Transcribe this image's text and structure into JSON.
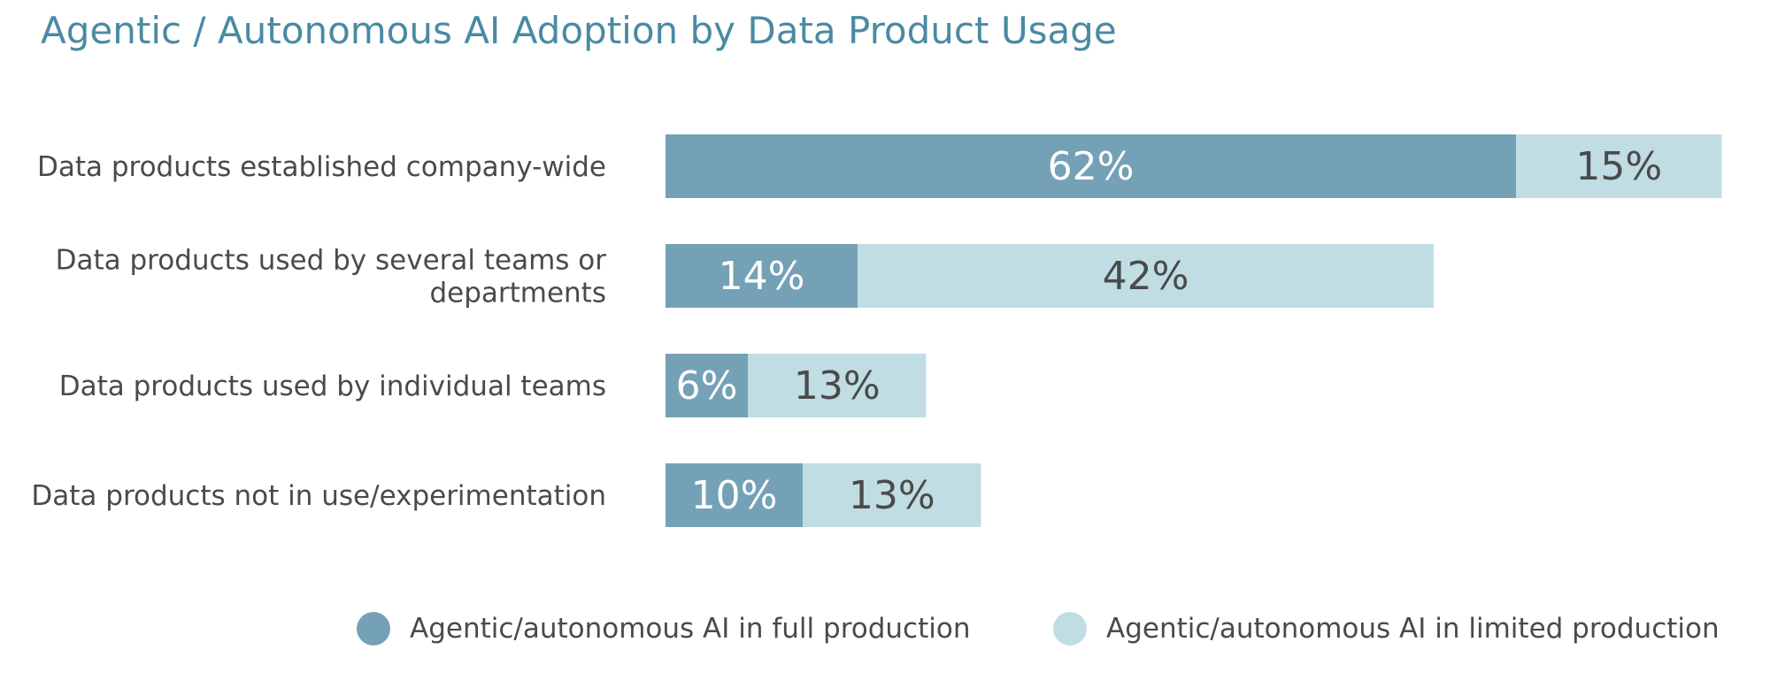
{
  "title": "Agentic / Autonomous AI Adoption by Data Product Usage",
  "colors": {
    "full_production": "#74a1b5",
    "limited_production": "#c0dde3",
    "title": "#4a8aa2",
    "label": "#4a4a4a"
  },
  "legend": {
    "full_label": "Agentic/autonomous AI in full production",
    "limited_label": "Agentic/autonomous AI in limited production"
  },
  "chart_data": {
    "type": "bar",
    "orientation": "horizontal",
    "stacked": true,
    "title": "Agentic / Autonomous AI Adoption by Data Product Usage",
    "categories": [
      [
        "Data products established company-wide"
      ],
      [
        "Data products used by several teams or",
        "departments"
      ],
      [
        "Data products used by individual teams"
      ],
      [
        "Data products not in use/experimentation"
      ]
    ],
    "series": [
      {
        "name": "Agentic/autonomous AI in full production",
        "color": "#74a1b5",
        "values": [
          62,
          14,
          6,
          10
        ],
        "labels": [
          "62%",
          "14%",
          "6%",
          "10%"
        ]
      },
      {
        "name": "Agentic/autonomous AI in limited production",
        "color": "#c0dde3",
        "values": [
          15,
          42,
          13,
          13
        ],
        "labels": [
          "15%",
          "42%",
          "13%",
          "13%"
        ]
      }
    ],
    "xlim": [
      0,
      77
    ],
    "legend_position": "bottom",
    "grid": false
  }
}
